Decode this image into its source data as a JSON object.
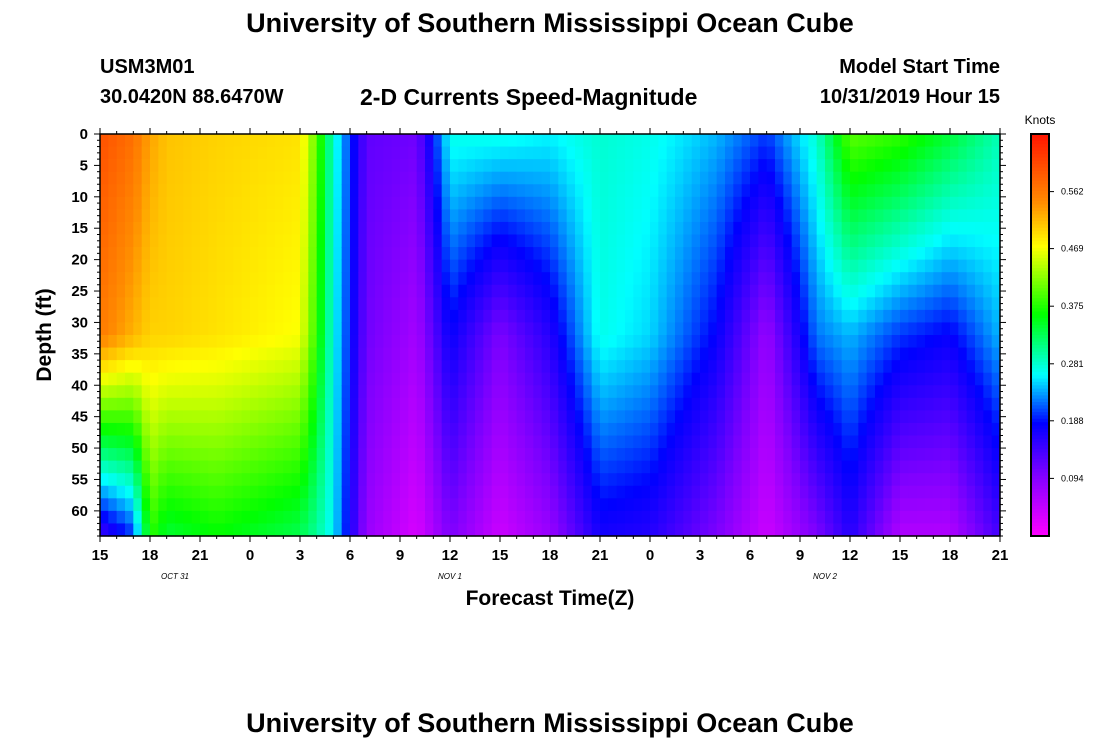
{
  "header": {
    "title": "University of Southern Mississippi Ocean Cube",
    "station_id": "USM3M01",
    "coordinates": "30.0420N 88.6470W",
    "plot_title": "2-D Currents Speed-Magnitude",
    "model_start_label": "Model Start Time",
    "model_start_time": "10/31/2019 Hour 15"
  },
  "footer": {
    "title": "University of Southern Mississippi Ocean Cube"
  },
  "chart_data": {
    "type": "heatmap",
    "title": "2-D Currents Speed-Magnitude",
    "xlabel": "Forecast Time(Z)",
    "ylabel": "Depth (ft)",
    "x_range_hours": [
      0,
      54
    ],
    "x_tick_labels": [
      "15",
      "18",
      "21",
      "0",
      "3",
      "6",
      "9",
      "12",
      "15",
      "18",
      "21",
      "0",
      "3",
      "6",
      "9",
      "12",
      "15",
      "18",
      "21"
    ],
    "date_labels": [
      {
        "label": "OCT 31",
        "hour": 4.5
      },
      {
        "label": "NOV 1",
        "hour": 21
      },
      {
        "label": "NOV 2",
        "hour": 43.5
      }
    ],
    "y_range_ft": [
      0,
      64
    ],
    "y_tick_labels": [
      "0",
      "5",
      "10",
      "15",
      "20",
      "25",
      "30",
      "35",
      "40",
      "45",
      "50",
      "55",
      "60"
    ],
    "colorbar": {
      "label": "Knots",
      "min": 0,
      "max": 0.656,
      "tick_labels": [
        "0.562",
        "0.469",
        "0.375",
        "0.281",
        "0.188",
        "0.094"
      ]
    },
    "column_profiles_knots": [
      {
        "hour": 0,
        "surface": 0.6,
        "mid": 0.56,
        "bottom": 0.14
      },
      {
        "hour": 2,
        "surface": 0.57,
        "mid": 0.52,
        "bottom": 0.2
      },
      {
        "hour": 3,
        "surface": 0.53,
        "mid": 0.5,
        "bottom": 0.38
      },
      {
        "hour": 4,
        "surface": 0.51,
        "mid": 0.5,
        "bottom": 0.34
      },
      {
        "hour": 7,
        "surface": 0.5,
        "mid": 0.49,
        "bottom": 0.36
      },
      {
        "hour": 12,
        "surface": 0.49,
        "mid": 0.47,
        "bottom": 0.33
      },
      {
        "hour": 13,
        "surface": 0.4,
        "mid": 0.38,
        "bottom": 0.3
      },
      {
        "hour": 14,
        "surface": 0.28,
        "mid": 0.27,
        "bottom": 0.26
      },
      {
        "hour": 16,
        "surface": 0.12,
        "mid": 0.11,
        "bottom": 0.08
      },
      {
        "hour": 19,
        "surface": 0.11,
        "mid": 0.07,
        "bottom": 0.03
      },
      {
        "hour": 21,
        "surface": 0.27,
        "mid": 0.18,
        "bottom": 0.1
      },
      {
        "hour": 24,
        "surface": 0.27,
        "mid": 0.1,
        "bottom": 0.04
      },
      {
        "hour": 27,
        "surface": 0.26,
        "mid": 0.16,
        "bottom": 0.08
      },
      {
        "hour": 30,
        "surface": 0.28,
        "mid": 0.27,
        "bottom": 0.17
      },
      {
        "hour": 33,
        "surface": 0.27,
        "mid": 0.25,
        "bottom": 0.16
      },
      {
        "hour": 37,
        "surface": 0.24,
        "mid": 0.18,
        "bottom": 0.1
      },
      {
        "hour": 40,
        "surface": 0.2,
        "mid": 0.08,
        "bottom": 0.04
      },
      {
        "hour": 43,
        "surface": 0.28,
        "mid": 0.22,
        "bottom": 0.1
      },
      {
        "hour": 45,
        "surface": 0.4,
        "mid": 0.24,
        "bottom": 0.16
      },
      {
        "hour": 48,
        "surface": 0.38,
        "mid": 0.2,
        "bottom": 0.06
      },
      {
        "hour": 51,
        "surface": 0.34,
        "mid": 0.18,
        "bottom": 0.06
      },
      {
        "hour": 54,
        "surface": 0.29,
        "mid": 0.24,
        "bottom": 0.14
      }
    ]
  }
}
